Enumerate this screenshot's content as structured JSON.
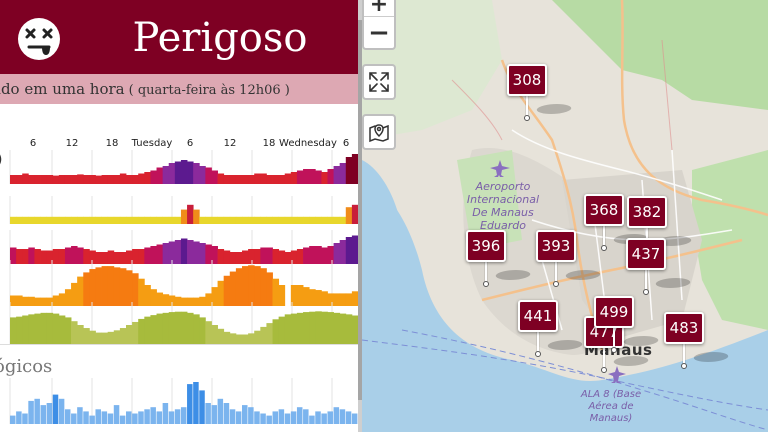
{
  "header": {
    "status": "Perigoso",
    "status_color": "#7e0023",
    "face_icon": "dizzy-face-icon"
  },
  "update": {
    "text": "ado em uma hora",
    "time": "( quarta-feira às 12h06 )"
  },
  "timeline": {
    "labels": [
      "6",
      "12",
      "18",
      "Tuesday",
      "6",
      "12",
      "18",
      "Wednesday",
      "6"
    ]
  },
  "forecast_rows": [
    {
      "name": "aqi-row-1",
      "values": [
        0.3,
        0.3,
        0.35,
        0.3,
        0.3,
        0.3,
        0.3,
        0.28,
        0.3,
        0.3,
        0.3,
        0.32,
        0.3,
        0.3,
        0.28,
        0.3,
        0.3,
        0.3,
        0.35,
        0.3,
        0.3,
        0.35,
        0.4,
        0.45,
        0.55,
        0.6,
        0.7,
        0.75,
        0.8,
        0.75,
        0.7,
        0.6,
        0.55,
        0.45,
        0.35,
        0.3,
        0.3,
        0.3,
        0.3,
        0.3,
        0.35,
        0.35,
        0.3,
        0.3,
        0.3,
        0.35,
        0.4,
        0.45,
        0.5,
        0.5,
        0.45,
        0.4,
        0.5,
        0.6,
        0.7,
        0.9,
        1.0
      ]
    },
    {
      "name": "aqi-row-2",
      "values": [
        0.3,
        0.3,
        0.3,
        0.3,
        0.3,
        0.3,
        0.3,
        0.3,
        0.3,
        0.3,
        0.3,
        0.3,
        0.3,
        0.3,
        0.3,
        0.3,
        0.3,
        0.3,
        0.3,
        0.3,
        0.3,
        0.3,
        0.3,
        0.3,
        0.3,
        0.3,
        0.3,
        0.3,
        0.6,
        0.8,
        0.6,
        0.3,
        0.3,
        0.3,
        0.3,
        0.3,
        0.3,
        0.3,
        0.3,
        0.3,
        0.3,
        0.3,
        0.3,
        0.3,
        0.3,
        0.3,
        0.3,
        0.3,
        0.3,
        0.3,
        0.3,
        0.3,
        0.3,
        0.3,
        0.3,
        0.7,
        0.8
      ]
    },
    {
      "name": "aqi-row-3",
      "values": [
        0.55,
        0.5,
        0.5,
        0.55,
        0.5,
        0.45,
        0.45,
        0.5,
        0.5,
        0.55,
        0.6,
        0.55,
        0.5,
        0.45,
        0.4,
        0.4,
        0.45,
        0.4,
        0.4,
        0.45,
        0.5,
        0.5,
        0.55,
        0.6,
        0.65,
        0.7,
        0.75,
        0.8,
        0.85,
        0.8,
        0.75,
        0.7,
        0.65,
        0.6,
        0.5,
        0.45,
        0.4,
        0.4,
        0.45,
        0.5,
        0.5,
        0.55,
        0.55,
        0.5,
        0.45,
        0.4,
        0.45,
        0.5,
        0.55,
        0.6,
        0.6,
        0.55,
        0.6,
        0.7,
        0.8,
        0.9,
        0.95
      ]
    },
    {
      "name": "temperature-row",
      "values": [
        0.25,
        0.25,
        0.22,
        0.22,
        0.2,
        0.2,
        0.2,
        0.25,
        0.3,
        0.4,
        0.55,
        0.7,
        0.8,
        0.88,
        0.92,
        0.95,
        0.95,
        0.92,
        0.9,
        0.85,
        0.78,
        0.65,
        0.5,
        0.4,
        0.32,
        0.28,
        0.25,
        0.22,
        0.2,
        0.2,
        0.2,
        0.22,
        0.3,
        0.45,
        0.6,
        0.72,
        0.82,
        0.9,
        0.95,
        0.97,
        0.95,
        0.9,
        0.8,
        0.65,
        0.5,
        0.0,
        0.5,
        0.5,
        0.45,
        0.4,
        0.38,
        0.35,
        0.3,
        0.3,
        0.3,
        0.3,
        0.35
      ]
    },
    {
      "name": "humidity-row",
      "values": [
        0.7,
        0.72,
        0.75,
        0.78,
        0.8,
        0.82,
        0.82,
        0.8,
        0.75,
        0.7,
        0.6,
        0.5,
        0.42,
        0.35,
        0.3,
        0.3,
        0.32,
        0.36,
        0.42,
        0.5,
        0.58,
        0.66,
        0.72,
        0.76,
        0.8,
        0.82,
        0.84,
        0.85,
        0.85,
        0.82,
        0.78,
        0.7,
        0.6,
        0.5,
        0.4,
        0.32,
        0.28,
        0.25,
        0.25,
        0.28,
        0.35,
        0.45,
        0.55,
        0.65,
        0.72,
        0.78,
        0.8,
        0.82,
        0.84,
        0.85,
        0.86,
        0.85,
        0.84,
        0.82,
        0.8,
        0.78,
        0.75
      ]
    }
  ],
  "weather": {
    "heading": "ógicos",
    "rain_values": [
      0.2,
      0.3,
      0.25,
      0.55,
      0.6,
      0.45,
      0.5,
      0.7,
      0.6,
      0.35,
      0.25,
      0.4,
      0.3,
      0.2,
      0.35,
      0.3,
      0.25,
      0.45,
      0.2,
      0.3,
      0.25,
      0.3,
      0.35,
      0.4,
      0.3,
      0.5,
      0.3,
      0.35,
      0.4,
      0.95,
      1.0,
      0.8,
      0.5,
      0.45,
      0.6,
      0.5,
      0.35,
      0.3,
      0.45,
      0.4,
      0.3,
      0.25,
      0.2,
      0.3,
      0.35,
      0.25,
      0.3,
      0.4,
      0.35,
      0.2,
      0.3,
      0.25,
      0.3,
      0.4,
      0.35,
      0.3,
      0.25
    ]
  },
  "map": {
    "airport_label": "Aeroporto Internacional De Manaus Eduardo",
    "city_label": "Manaus",
    "base_label": "ALA 8 (Base Aérea de Manaus)",
    "controls": {
      "zoom_in": "+",
      "zoom_out": "−",
      "fullscreen_icon": "fullscreen-arrows-icon",
      "layers_icon": "map-marker-icon"
    },
    "stations": [
      {
        "value": "308"
      },
      {
        "value": "368"
      },
      {
        "value": "382"
      },
      {
        "value": "396"
      },
      {
        "value": "393"
      },
      {
        "value": "437"
      },
      {
        "value": "441"
      },
      {
        "value": "477"
      },
      {
        "value": "499"
      },
      {
        "value": "483"
      }
    ]
  }
}
